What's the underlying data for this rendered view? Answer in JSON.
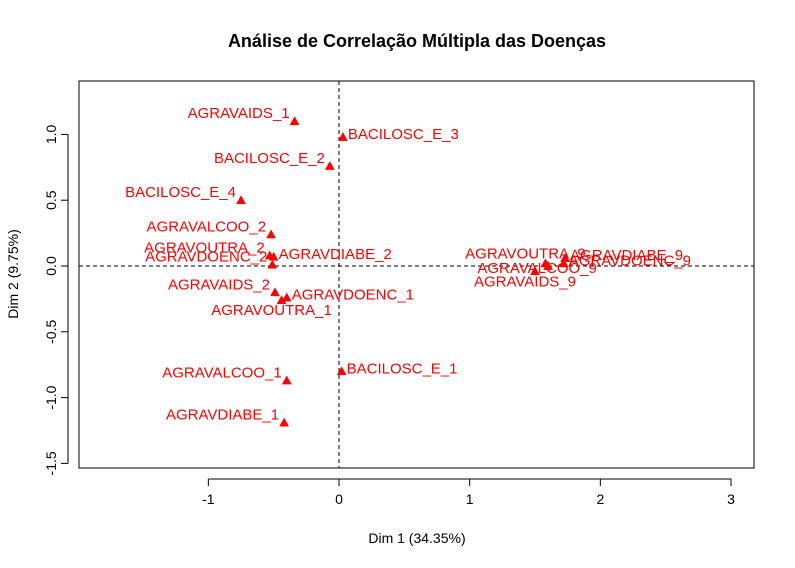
{
  "chart_data": {
    "type": "scatter",
    "title": "Análise de Correlação Múltipla das Doenças",
    "xlabel": "Dim 1 (34.35%)",
    "ylabel": "Dim 2 (9.75%)",
    "xlim": [
      -2,
      3.15
    ],
    "ylim": [
      -1.55,
      1.4
    ],
    "xticks": [
      -1,
      0,
      1,
      2,
      3
    ],
    "yticks": [
      -1.5,
      -1.0,
      -0.5,
      0.0,
      0.5,
      1.0
    ],
    "xtick_labels": [
      "-1",
      "0",
      "1",
      "2",
      "3"
    ],
    "ytick_labels": [
      "-1.5",
      "-1.0",
      "-0.5",
      "0.0",
      "0.5",
      "1.0"
    ],
    "reference_lines": {
      "x": 0,
      "y": 0,
      "style": "dashed"
    },
    "point_color": "#ff0000",
    "marker": "triangle",
    "grid": false,
    "points": [
      {
        "label": "AGRAVAIDS_1",
        "x": -0.34,
        "y": 1.1,
        "label_pos": "left"
      },
      {
        "label": "BACILOSC_E_3",
        "x": 0.03,
        "y": 0.98,
        "label_pos": "right"
      },
      {
        "label": "BACILOSC_E_2",
        "x": -0.07,
        "y": 0.76,
        "label_pos": "left"
      },
      {
        "label": "BACILOSC_E_4",
        "x": -0.75,
        "y": 0.5,
        "label_pos": "left"
      },
      {
        "label": "AGRAVALCOO_2",
        "x": -0.52,
        "y": 0.24,
        "label_pos": "left"
      },
      {
        "label": "AGRAVOUTRA_2",
        "x": -0.53,
        "y": 0.08,
        "label_pos": "left"
      },
      {
        "label": "AGRAVDIABE_2",
        "x": -0.5,
        "y": 0.07,
        "label_pos": "right"
      },
      {
        "label": "AGRAVDOENC_2",
        "x": -0.51,
        "y": 0.01,
        "label_pos": "left"
      },
      {
        "label": "AGRAVAIDS_2",
        "x": -0.49,
        "y": -0.2,
        "label_pos": "left"
      },
      {
        "label": "AGRAVDOENC_1",
        "x": -0.4,
        "y": -0.24,
        "label_pos": "right"
      },
      {
        "label": "AGRAVOUTRA_1",
        "x": -0.44,
        "y": -0.26,
        "label_pos": "bottom"
      },
      {
        "label": "BACILOSC_E_1",
        "x": 0.02,
        "y": -0.8,
        "label_pos": "right"
      },
      {
        "label": "AGRAVALCOO_1",
        "x": -0.4,
        "y": -0.87,
        "label_pos": "left"
      },
      {
        "label": "AGRAVDIABE_1",
        "x": -0.42,
        "y": -1.19,
        "label_pos": "left"
      },
      {
        "label": "AGRAVOUTRA_9",
        "x": 1.58,
        "y": 0.02,
        "label_pos": "top"
      },
      {
        "label": "AGRAVALCOO_9",
        "x": 1.6,
        "y": 0.0,
        "label_pos": "nudge"
      },
      {
        "label": "AGRAVAIDS_9",
        "x": 1.5,
        "y": -0.04,
        "label_pos": "bottom"
      },
      {
        "label": "AGRAVDIABE_9",
        "x": 1.73,
        "y": 0.06,
        "label_pos": "right"
      },
      {
        "label": "AGRAVDOENC_9",
        "x": 1.72,
        "y": 0.02,
        "label_pos": "right"
      }
    ]
  }
}
